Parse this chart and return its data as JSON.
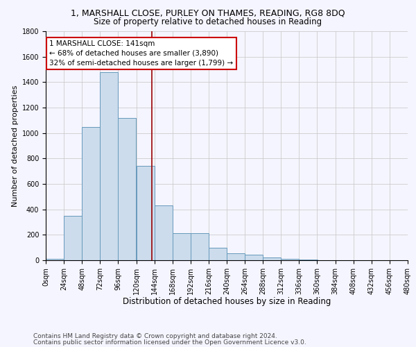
{
  "title1": "1, MARSHALL CLOSE, PURLEY ON THAMES, READING, RG8 8DQ",
  "title2": "Size of property relative to detached houses in Reading",
  "xlabel": "Distribution of detached houses by size in Reading",
  "ylabel": "Number of detached properties",
  "bar_values": [
    10,
    350,
    1050,
    1480,
    1120,
    740,
    430,
    215,
    215,
    100,
    55,
    45,
    20,
    10,
    5,
    0,
    0,
    0,
    0,
    0
  ],
  "bin_edges": [
    0,
    24,
    48,
    72,
    96,
    120,
    144,
    168,
    192,
    216,
    240,
    264,
    288,
    312,
    336,
    360,
    384,
    408,
    432,
    456,
    480
  ],
  "x_tick_labels": [
    "0sqm",
    "24sqm",
    "48sqm",
    "72sqm",
    "96sqm",
    "120sqm",
    "144sqm",
    "168sqm",
    "192sqm",
    "216sqm",
    "240sqm",
    "264sqm",
    "288sqm",
    "312sqm",
    "336sqm",
    "360sqm",
    "384sqm",
    "408sqm",
    "432sqm",
    "456sqm",
    "480sqm"
  ],
  "bar_color": "#ccdcec",
  "bar_edge_color": "#6699bb",
  "property_size": 141,
  "vline_color": "#990000",
  "annotation_text": "1 MARSHALL CLOSE: 141sqm\n← 68% of detached houses are smaller (3,890)\n32% of semi-detached houses are larger (1,799) →",
  "annotation_box_color": "#ffffff",
  "annotation_box_edge_color": "#cc0000",
  "ylim": [
    0,
    1800
  ],
  "yticks": [
    0,
    200,
    400,
    600,
    800,
    1000,
    1200,
    1400,
    1600,
    1800
  ],
  "grid_color": "#cccccc",
  "bg_color": "#f5f5ff",
  "footnote1": "Contains HM Land Registry data © Crown copyright and database right 2024.",
  "footnote2": "Contains public sector information licensed under the Open Government Licence v3.0.",
  "title1_fontsize": 9,
  "title2_fontsize": 8.5,
  "xlabel_fontsize": 8.5,
  "ylabel_fontsize": 8,
  "tick_fontsize": 7,
  "annotation_fontsize": 7.5,
  "footnote_fontsize": 6.5
}
